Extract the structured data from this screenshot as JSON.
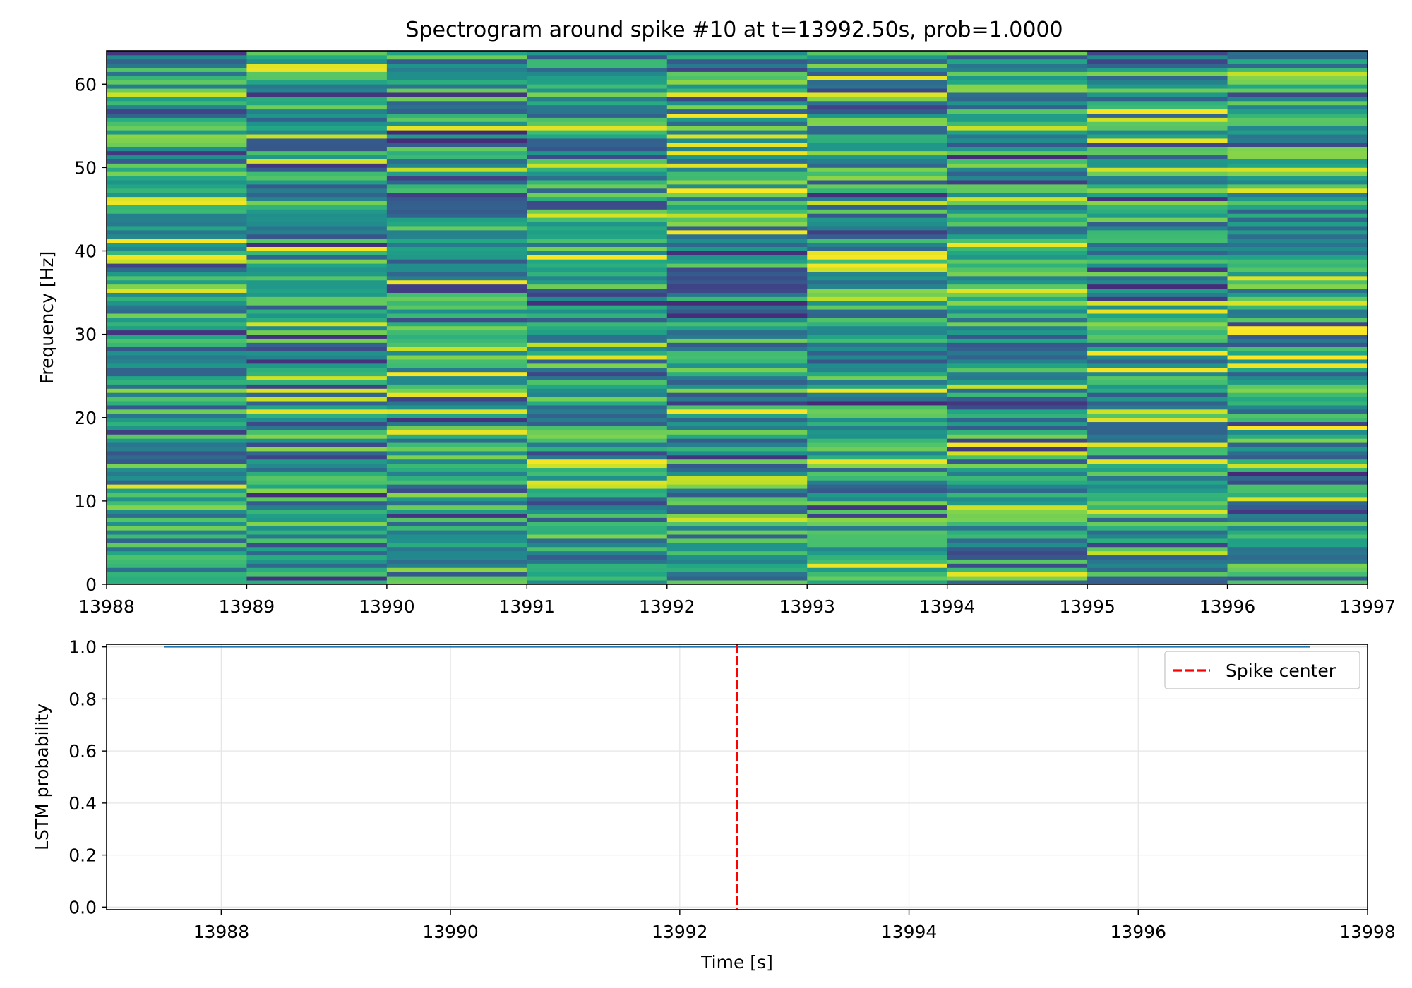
{
  "chart_data": [
    {
      "type": "heatmap",
      "title": "Spectrogram around spike #10 at t=13992.50s, prob=1.0000",
      "xlabel": "",
      "ylabel": "Frequency [Hz]",
      "xlim": [
        13988,
        13997
      ],
      "ylim": [
        0,
        64
      ],
      "xticks": [
        "13988",
        "13989",
        "13990",
        "13991",
        "13992",
        "13993",
        "13994",
        "13995",
        "13996",
        "13997"
      ],
      "yticks": [
        "0",
        "10",
        "20",
        "30",
        "40",
        "50",
        "60"
      ],
      "time_bins": [
        13988,
        13989,
        13990,
        13991,
        13992,
        13993,
        13994,
        13995,
        13996,
        13997
      ],
      "frequency_bin_hz": 0.5,
      "colormap": "viridis",
      "grid": false
    },
    {
      "type": "line",
      "title": "",
      "xlabel": "Time [s]",
      "ylabel": "LSTM probability",
      "xlim": [
        13987,
        13998
      ],
      "ylim": [
        -0.01,
        1.01
      ],
      "xticks": [
        "13988",
        "13990",
        "13992",
        "13994",
        "13996",
        "13998"
      ],
      "yticks": [
        "0.0",
        "0.2",
        "0.4",
        "0.6",
        "0.8",
        "1.0"
      ],
      "series": [
        {
          "x": [
            13987.5,
            13997.5
          ],
          "values": [
            1.0,
            1.0
          ],
          "color": "#1f77b4"
        }
      ],
      "vlines": [
        {
          "name": "Spike center",
          "x": 13992.5,
          "color": "#ff0000",
          "style": "dashed"
        }
      ],
      "legend": {
        "position": "top-right",
        "entries": [
          "Spike center"
        ]
      },
      "grid": true
    }
  ]
}
